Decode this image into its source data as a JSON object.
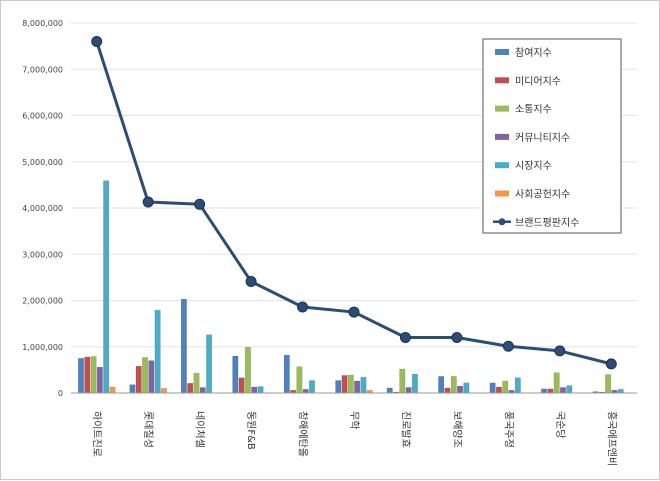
{
  "chart_data": {
    "type": "bar",
    "title": "",
    "xlabel": "",
    "ylabel": "",
    "ylim": [
      0,
      8000000
    ],
    "yticks": [
      "0",
      "1,000,000",
      "2,000,000",
      "3,000,000",
      "4,000,000",
      "5,000,000",
      "6,000,000",
      "7,000,000",
      "8,000,000"
    ],
    "grid": true,
    "legend_position": "top-right",
    "categories": [
      "하이트진로",
      "롯데칠성",
      "네이처셀",
      "동원F&B",
      "창해에탄올",
      "무학",
      "진로발효",
      "보해양조",
      "풍국주정",
      "국순당",
      "흥국에프엔비"
    ],
    "series": [
      {
        "name": "참여지수",
        "color": "#4f81bd",
        "values": [
          750000,
          180000,
          2030000,
          800000,
          820000,
          270000,
          110000,
          360000,
          220000,
          90000,
          30000
        ]
      },
      {
        "name": "미디어지수",
        "color": "#c0504d",
        "values": [
          780000,
          580000,
          210000,
          330000,
          60000,
          380000,
          15000,
          110000,
          130000,
          90000,
          20000
        ]
      },
      {
        "name": "소통지수",
        "color": "#9bbb59",
        "values": [
          790000,
          770000,
          430000,
          990000,
          570000,
          390000,
          520000,
          360000,
          260000,
          440000,
          400000
        ]
      },
      {
        "name": "커뮤니티지수",
        "color": "#8064a2",
        "values": [
          560000,
          700000,
          120000,
          130000,
          80000,
          260000,
          120000,
          150000,
          60000,
          120000,
          60000
        ]
      },
      {
        "name": "시장지수",
        "color": "#4bacc6",
        "values": [
          4590000,
          1790000,
          1260000,
          140000,
          270000,
          340000,
          410000,
          220000,
          330000,
          160000,
          80000
        ]
      },
      {
        "name": "사회공헌지수",
        "color": "#f79646",
        "values": [
          130000,
          100000,
          0,
          0,
          0,
          60000,
          0,
          0,
          0,
          0,
          0
        ]
      }
    ],
    "line_series": {
      "name": "브랜드평판지수",
      "color": "#2c4d75",
      "values": [
        7600000,
        4130000,
        4080000,
        2410000,
        1860000,
        1750000,
        1200000,
        1200000,
        1010000,
        910000,
        630000
      ]
    }
  }
}
